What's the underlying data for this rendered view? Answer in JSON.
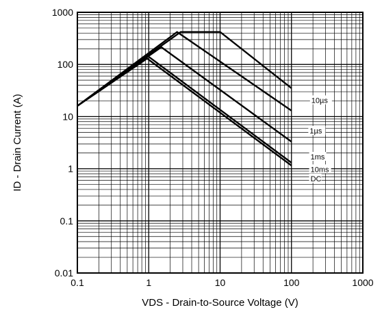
{
  "chart_data": {
    "type": "line",
    "title": "",
    "xlabel": "VDS - Drain-to-Source Voltage (V)",
    "ylabel": "ID - Drain Current (A)",
    "x_scale": "log",
    "y_scale": "log",
    "xlim": [
      0.1,
      1000
    ],
    "ylim": [
      0.01,
      1000
    ],
    "x_tick_labels": [
      "0.1",
      "1",
      "10",
      "100",
      "1000"
    ],
    "y_tick_labels": [
      "0.01",
      "0.1",
      "1",
      "10",
      "100",
      "1000"
    ],
    "grid": true,
    "series": [
      {
        "name": "10µs",
        "x": [
          0.1,
          2.8,
          10,
          100
        ],
        "y": [
          16,
          420,
          420,
          35
        ]
      },
      {
        "name": "1µs",
        "x": [
          0.1,
          2.5,
          100
        ],
        "y": [
          16,
          420,
          13
        ]
      },
      {
        "name": "1ms",
        "x": [
          0.1,
          1.5,
          100
        ],
        "y": [
          16,
          215,
          3.3
        ]
      },
      {
        "name": "10ms",
        "x": [
          0.1,
          0.95,
          100
        ],
        "y": [
          16,
          148,
          1.3
        ]
      },
      {
        "name": "DC",
        "x": [
          0.1,
          0.95,
          100
        ],
        "y": [
          16,
          130,
          1.15
        ]
      }
    ],
    "curve_labels": [
      {
        "text": "10µs",
        "x": 190,
        "y": 20
      },
      {
        "text": "1µs",
        "x": 180,
        "y": 5.2
      },
      {
        "text": "1ms",
        "x": 185,
        "y": 1.65
      },
      {
        "text": "10ms",
        "x": 185,
        "y": 0.95
      },
      {
        "text": "DC",
        "x": 185,
        "y": 0.63
      }
    ]
  }
}
